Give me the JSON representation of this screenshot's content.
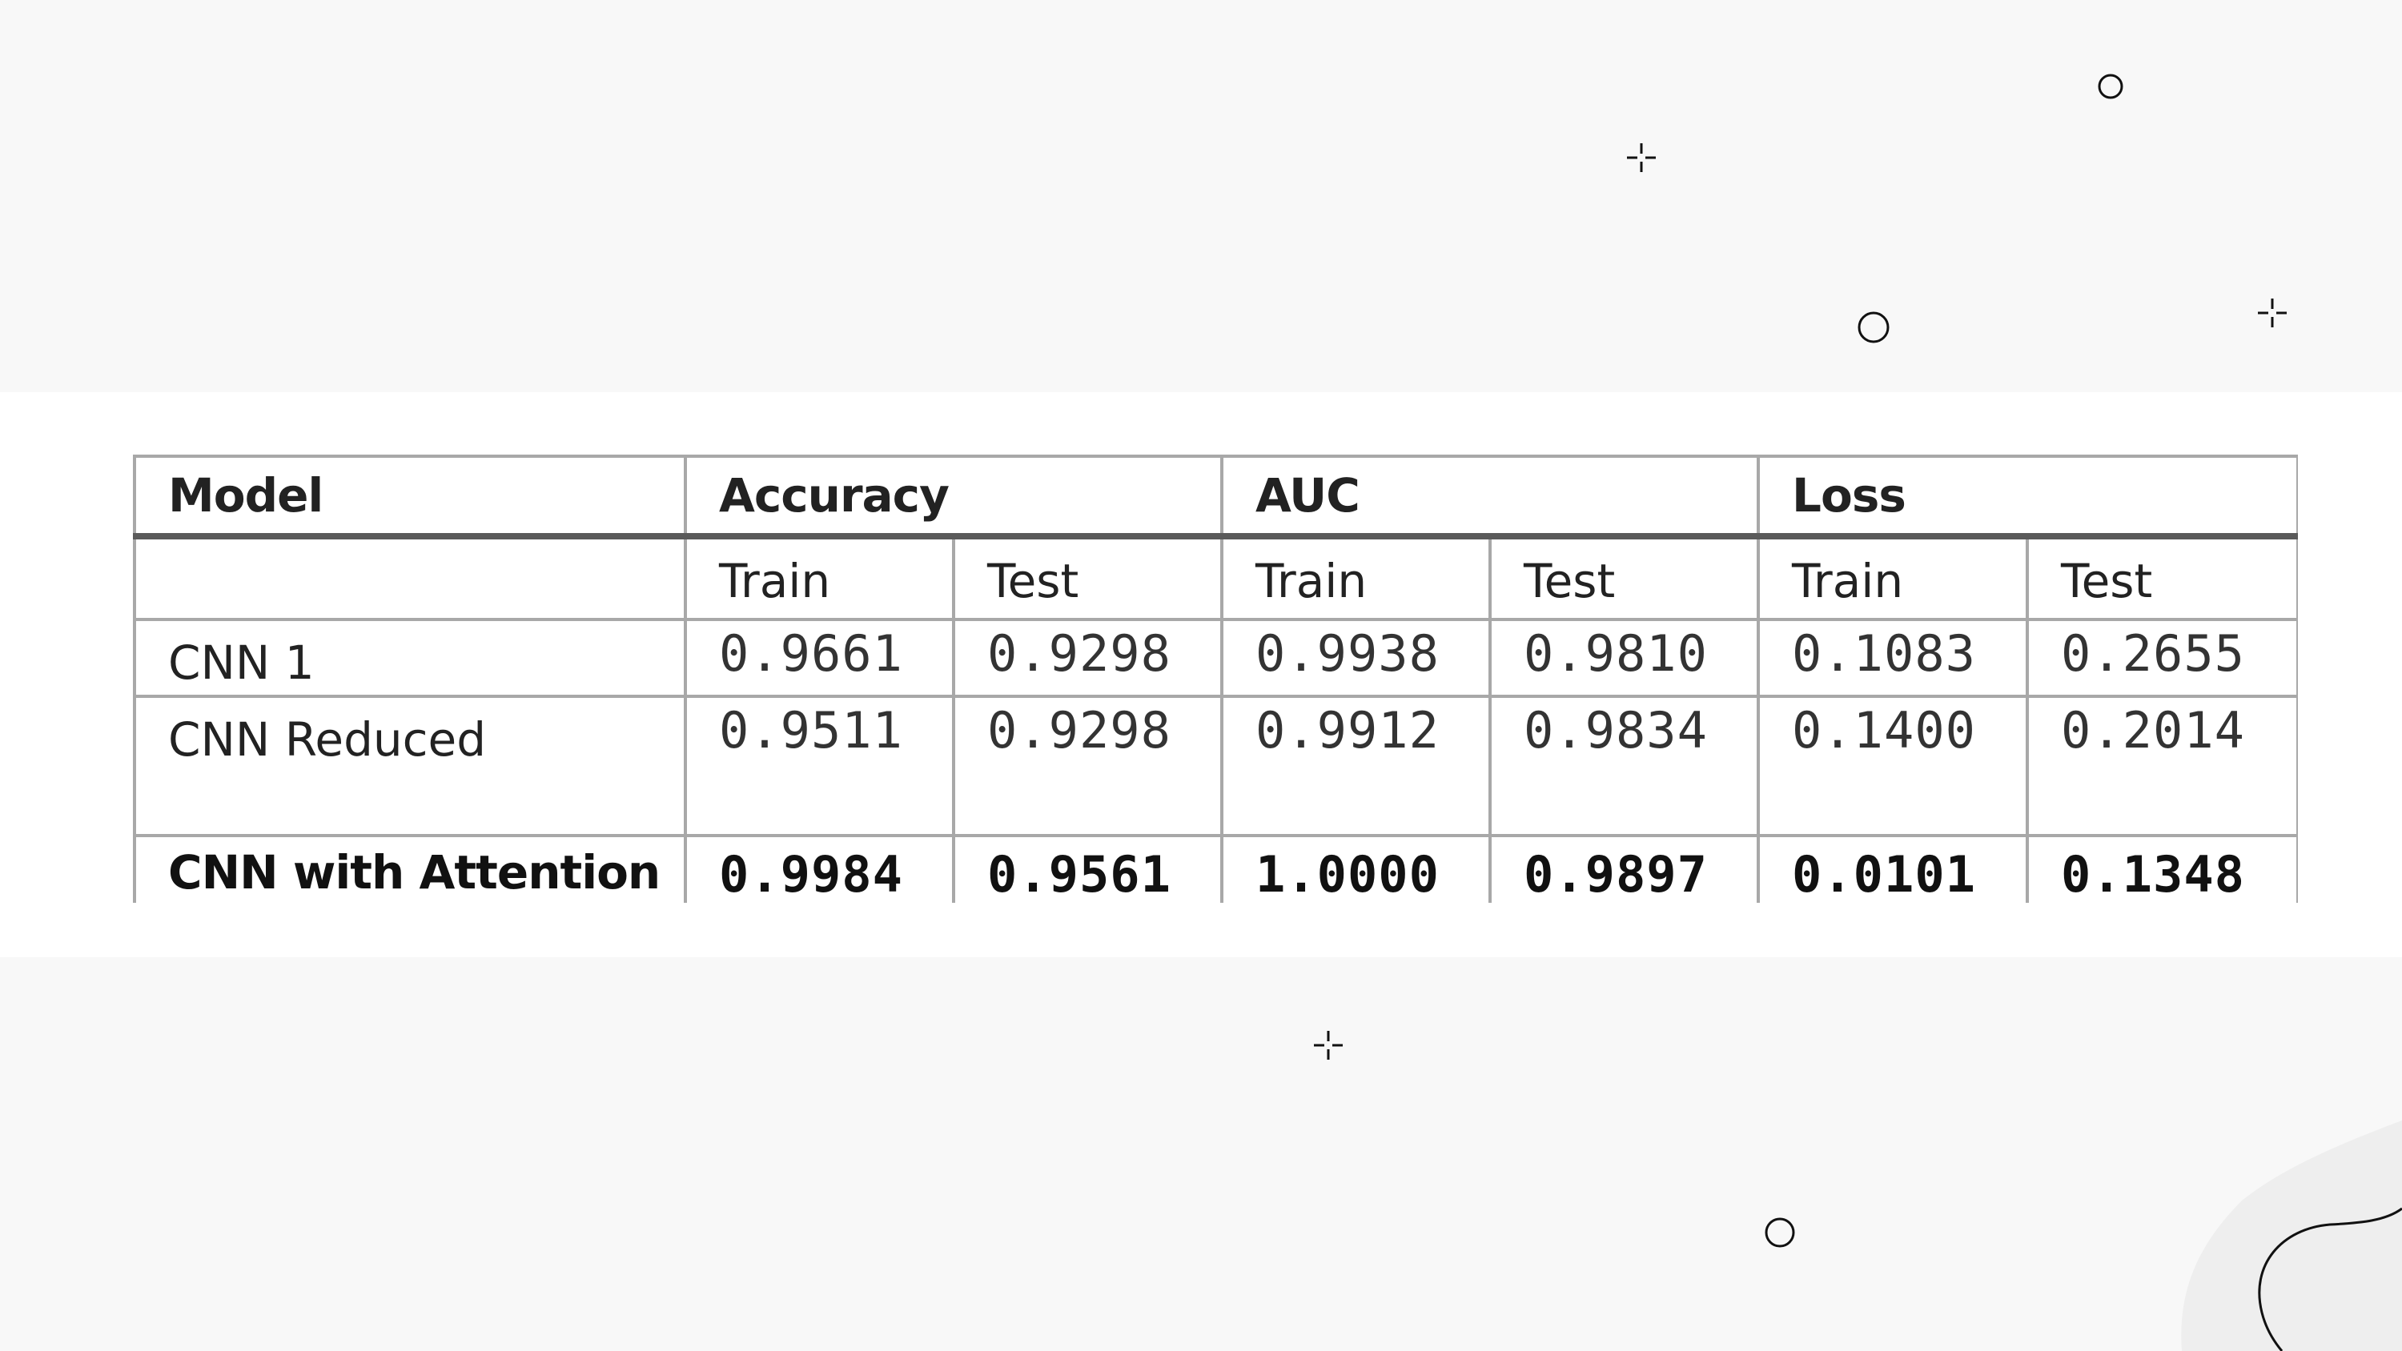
{
  "table": {
    "header": {
      "model": "Model",
      "accuracy": "Accuracy",
      "auc": "AUC",
      "loss": "Loss"
    },
    "subheader": [
      "Train",
      "Test",
      "Train",
      "Test",
      "Train",
      "Test"
    ],
    "rows": [
      {
        "model": "CNN 1",
        "values": [
          "0.9661",
          "0.9298",
          "0.9938",
          "0.9810",
          "0.1083",
          "0.2655"
        ]
      },
      {
        "model": "CNN Reduced",
        "values": [
          "0.9511",
          "0.9298",
          "0.9912",
          "0.9834",
          "0.1400",
          "0.2014"
        ]
      },
      {
        "model": "CNN with Attention",
        "values": [
          "0.9984",
          "0.9561",
          "1.0000",
          "0.9897",
          "0.0101",
          "0.1348"
        ]
      }
    ]
  },
  "colors": {
    "background": "#f8f8f8",
    "band": "#ffffff",
    "table_border": "#a8a8a8",
    "header_rule": "#5a5a5a",
    "blob": "#eeeeee"
  }
}
